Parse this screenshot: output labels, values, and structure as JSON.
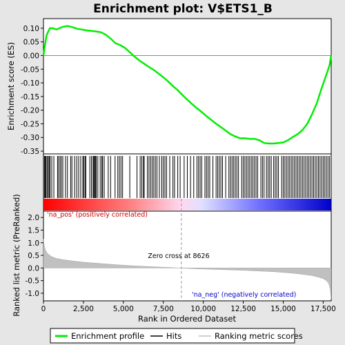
{
  "chart_data": {
    "type": "line",
    "title": "Enrichment plot: V$ETS1_B",
    "enrichment_panel": {
      "ylabel": "Enrichment score (ES)",
      "yticks": [
        0.1,
        0.05,
        0.0,
        -0.05,
        -0.1,
        -0.15,
        -0.2,
        -0.25,
        -0.3,
        -0.35
      ],
      "ytick_labels": [
        "0.10",
        "0.05",
        "0.00",
        "-0.05",
        "-0.10",
        "-0.15",
        "-0.20",
        "-0.25",
        "-0.30",
        "-0.35"
      ],
      "ylim": [
        -0.36,
        0.135
      ],
      "series": [
        {
          "color": "#00ee00",
          "x": [
            0,
            100,
            200,
            400,
            600,
            800,
            1000,
            1200,
            1500,
            1800,
            2100,
            2400,
            2700,
            3000,
            3300,
            3600,
            3900,
            4200,
            4500,
            4800,
            5100,
            5400,
            5700,
            6000,
            6300,
            6600,
            6900,
            7200,
            7500,
            7800,
            8100,
            8400,
            8700,
            9000,
            9300,
            9600,
            9900,
            10200,
            10500,
            10800,
            11100,
            11400,
            11700,
            12000,
            12300,
            12600,
            12900,
            13200,
            13500,
            13800,
            14100,
            14400,
            14700,
            15000,
            15300,
            15600,
            15900,
            16200,
            16500,
            16800,
            17100,
            17400,
            17700,
            17900,
            17990
          ],
          "y": [
            0.0,
            0.04,
            0.075,
            0.1,
            0.1,
            0.095,
            0.1,
            0.105,
            0.108,
            0.104,
            0.098,
            0.095,
            0.092,
            0.09,
            0.088,
            0.085,
            0.076,
            0.062,
            0.045,
            0.038,
            0.028,
            0.012,
            -0.004,
            -0.018,
            -0.03,
            -0.042,
            -0.053,
            -0.066,
            -0.08,
            -0.095,
            -0.112,
            -0.127,
            -0.145,
            -0.162,
            -0.178,
            -0.193,
            -0.207,
            -0.222,
            -0.236,
            -0.25,
            -0.262,
            -0.275,
            -0.288,
            -0.296,
            -0.303,
            -0.303,
            -0.305,
            -0.305,
            -0.31,
            -0.32,
            -0.322,
            -0.322,
            -0.32,
            -0.318,
            -0.31,
            -0.298,
            -0.288,
            -0.273,
            -0.25,
            -0.215,
            -0.175,
            -0.12,
            -0.07,
            -0.035,
            0.0
          ]
        }
      ]
    },
    "hits_panel": {
      "x": [
        60,
        110,
        160,
        230,
        300,
        360,
        420,
        520,
        650,
        880,
        950,
        1040,
        1120,
        1210,
        1380,
        1500,
        1700,
        1780,
        1950,
        2080,
        2200,
        2330,
        2460,
        2520,
        2600,
        2650,
        2900,
        3000,
        3100,
        3150,
        3200,
        3250,
        3300,
        3400,
        3550,
        3650,
        3700,
        3800,
        4050,
        4200,
        4480,
        4650,
        4750,
        4850,
        4950,
        5400,
        5850,
        6050,
        6150,
        6250,
        6300,
        6500,
        6600,
        6700,
        6800,
        6900,
        7000,
        7100,
        7250,
        7400,
        7500,
        7600,
        7700,
        7900,
        8100,
        8200,
        8400,
        8550,
        8800,
        9000,
        9200,
        9400,
        9600,
        9700,
        9800,
        9900,
        10100,
        10200,
        10300,
        10400,
        10600,
        10800,
        10900,
        11000,
        11100,
        11200,
        11400,
        11600,
        11700,
        11800,
        11900,
        12000,
        12100,
        12200,
        12400,
        12500,
        12600,
        12700,
        12800,
        12900,
        13000,
        13100,
        13200,
        13300,
        13400,
        13600,
        13700,
        13800,
        13950,
        14050,
        14150,
        14250,
        14400,
        14500,
        14600,
        14700,
        14900,
        15000,
        15100,
        15200,
        15300,
        15400,
        15500,
        15600,
        15700,
        15800,
        15900,
        16000,
        16100,
        16200,
        16300,
        16400,
        16500,
        16600,
        16700,
        16800,
        16900,
        17000,
        17100,
        17200,
        17300,
        17400,
        17500,
        17600,
        17700,
        17800,
        17900
      ]
    },
    "gradient_labels": {
      "pos": "'na_pos' (positively correlated)",
      "neg": "'na_neg' (negatively correlated)",
      "zero_cross": "Zero cross at 8626"
    },
    "metric_panel": {
      "ylabel": "Ranked list metric (PreRanked)",
      "yticks": [
        2.0,
        1.5,
        1.0,
        0.5,
        0.0,
        -0.5,
        -1.0
      ],
      "ytick_labels": [
        "2.0",
        "1.5",
        "1.0",
        "0.5",
        "0.0",
        "-0.5",
        "-1.0"
      ],
      "ylim": [
        -1.3,
        2.25
      ],
      "series": [
        {
          "color": "#c0c0c0",
          "x": [
            0,
            20,
            60,
            120,
            200,
            350,
            550,
            800,
            1200,
            1800,
            2500,
            3500,
            4500,
            5500,
            6500,
            7500,
            8626,
            9500,
            10500,
            11500,
            12500,
            13500,
            14500,
            15500,
            16200,
            16800,
            17200,
            17500,
            17700,
            17850,
            17950,
            17990
          ],
          "y": [
            1.15,
            1.0,
            0.85,
            0.72,
            0.62,
            0.52,
            0.44,
            0.38,
            0.33,
            0.28,
            0.23,
            0.18,
            0.13,
            0.09,
            0.06,
            0.03,
            0.0,
            -0.03,
            -0.05,
            -0.07,
            -0.09,
            -0.12,
            -0.15,
            -0.2,
            -0.25,
            -0.3,
            -0.36,
            -0.42,
            -0.5,
            -0.62,
            -0.85,
            -1.22
          ]
        }
      ]
    },
    "xaxis": {
      "label": "Rank in Ordered Dataset",
      "xlim": [
        0,
        18000
      ],
      "ticks": [
        0,
        2500,
        5000,
        7500,
        10000,
        12500,
        15000,
        17500
      ],
      "tick_labels": [
        "0",
        "2,500",
        "5,000",
        "7,500",
        "10,000",
        "12,500",
        "15,000",
        "17,500"
      ],
      "zero_cross": 8626
    },
    "legend": {
      "placement": "bottom",
      "items": [
        {
          "label": "Enrichment profile",
          "color": "#00ee00"
        },
        {
          "label": "Hits",
          "color": "#000000"
        },
        {
          "label": "Ranking metric scores",
          "color": "#c0c0c0"
        }
      ]
    }
  }
}
